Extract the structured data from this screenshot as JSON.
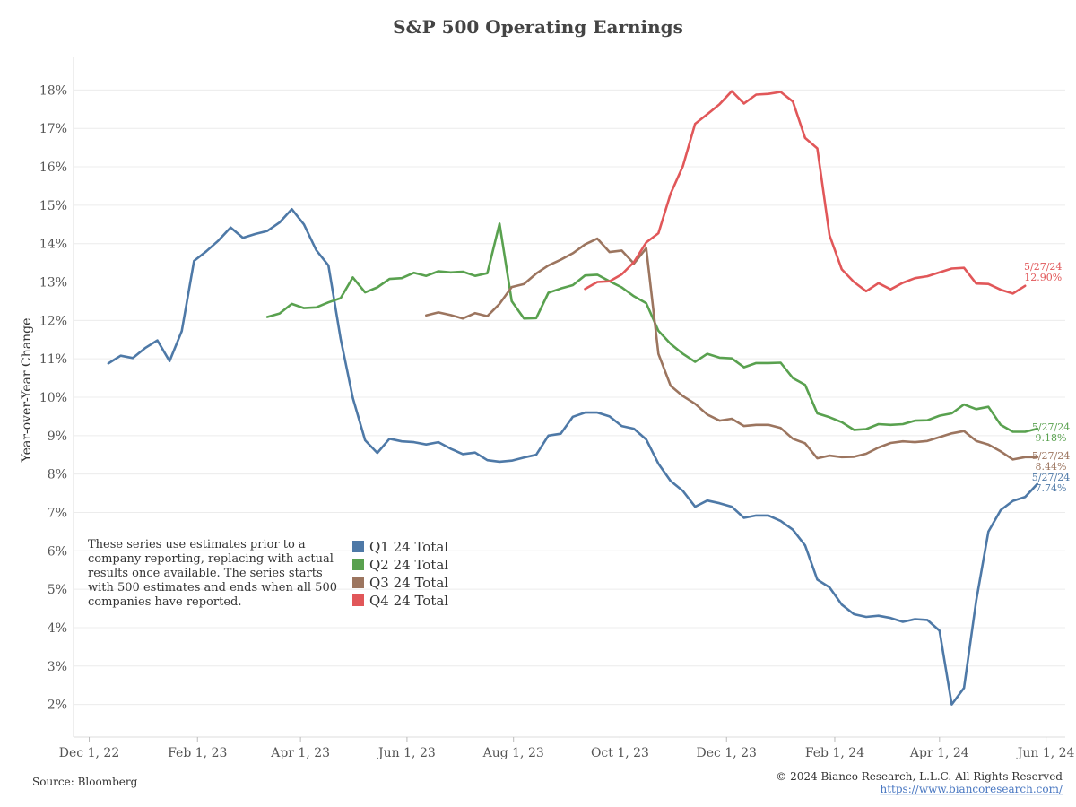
{
  "chart_data": {
    "type": "line",
    "title": "S&P 500 Operating Earnings",
    "ylabel": "Year-over-Year Change",
    "xlabel": "",
    "xlim": [
      "2022-11-22",
      "2024-06-12"
    ],
    "ylim": [
      1.15,
      18.85
    ],
    "y_ticks": [
      2,
      3,
      4,
      5,
      6,
      7,
      8,
      9,
      10,
      11,
      12,
      13,
      14,
      15,
      16,
      17,
      18
    ],
    "y_tick_suffix": "%",
    "x_ticks": [
      {
        "date": "2022-12-01",
        "label": "Dec 1, 22"
      },
      {
        "date": "2023-02-01",
        "label": "Feb 1, 23"
      },
      {
        "date": "2023-04-01",
        "label": "Apr 1, 23"
      },
      {
        "date": "2023-06-01",
        "label": "Jun 1, 23"
      },
      {
        "date": "2023-08-01",
        "label": "Aug 1, 23"
      },
      {
        "date": "2023-10-01",
        "label": "Oct 1, 23"
      },
      {
        "date": "2023-12-01",
        "label": "Dec 1, 23"
      },
      {
        "date": "2024-02-01",
        "label": "Feb 1, 24"
      },
      {
        "date": "2024-04-01",
        "label": "Apr 1, 24"
      },
      {
        "date": "2024-06-01",
        "label": "Jun 1, 24"
      }
    ],
    "grid": "horizontal",
    "legend_position": "lower-left",
    "series": [
      {
        "name": "Q1 24 Total",
        "color": "#4e79a7",
        "end_label": [
          "5/27/24",
          "7.74%"
        ],
        "points": [
          [
            "2022-12-12",
            10.88
          ],
          [
            "2022-12-19",
            11.08
          ],
          [
            "2022-12-26",
            11.02
          ],
          [
            "2023-01-02",
            11.28
          ],
          [
            "2023-01-09",
            11.48
          ],
          [
            "2023-01-16",
            10.94
          ],
          [
            "2023-01-23",
            11.72
          ],
          [
            "2023-01-30",
            13.55
          ],
          [
            "2023-02-06",
            13.8
          ],
          [
            "2023-02-13",
            14.08
          ],
          [
            "2023-02-20",
            14.42
          ],
          [
            "2023-02-27",
            14.15
          ],
          [
            "2023-03-06",
            14.25
          ],
          [
            "2023-03-13",
            14.33
          ],
          [
            "2023-03-20",
            14.55
          ],
          [
            "2023-03-27",
            14.9
          ],
          [
            "2023-04-03",
            14.5
          ],
          [
            "2023-04-10",
            13.83
          ],
          [
            "2023-04-17",
            13.43
          ],
          [
            "2023-04-24",
            11.52
          ],
          [
            "2023-05-01",
            9.98
          ],
          [
            "2023-05-08",
            8.88
          ],
          [
            "2023-05-15",
            8.55
          ],
          [
            "2023-05-22",
            8.92
          ],
          [
            "2023-05-29",
            8.85
          ],
          [
            "2023-06-05",
            8.83
          ],
          [
            "2023-06-12",
            8.77
          ],
          [
            "2023-06-19",
            8.83
          ],
          [
            "2023-06-26",
            8.66
          ],
          [
            "2023-07-03",
            8.52
          ],
          [
            "2023-07-10",
            8.56
          ],
          [
            "2023-07-17",
            8.36
          ],
          [
            "2023-07-24",
            8.32
          ],
          [
            "2023-07-31",
            8.35
          ],
          [
            "2023-08-07",
            8.43
          ],
          [
            "2023-08-14",
            8.5
          ],
          [
            "2023-08-21",
            9.0
          ],
          [
            "2023-08-28",
            9.05
          ],
          [
            "2023-09-04",
            9.49
          ],
          [
            "2023-09-11",
            9.6
          ],
          [
            "2023-09-18",
            9.6
          ],
          [
            "2023-09-25",
            9.5
          ],
          [
            "2023-10-02",
            9.25
          ],
          [
            "2023-10-09",
            9.18
          ],
          [
            "2023-10-16",
            8.9
          ],
          [
            "2023-10-23",
            8.27
          ],
          [
            "2023-10-30",
            7.82
          ],
          [
            "2023-11-06",
            7.56
          ],
          [
            "2023-11-13",
            7.15
          ],
          [
            "2023-11-20",
            7.31
          ],
          [
            "2023-11-27",
            7.24
          ],
          [
            "2023-12-04",
            7.15
          ],
          [
            "2023-12-11",
            6.86
          ],
          [
            "2023-12-18",
            6.92
          ],
          [
            "2023-12-25",
            6.92
          ],
          [
            "2024-01-01",
            6.78
          ],
          [
            "2024-01-08",
            6.55
          ],
          [
            "2024-01-15",
            6.14
          ],
          [
            "2024-01-22",
            5.25
          ],
          [
            "2024-01-29",
            5.05
          ],
          [
            "2024-02-05",
            4.6
          ],
          [
            "2024-02-12",
            4.35
          ],
          [
            "2024-02-19",
            4.28
          ],
          [
            "2024-02-26",
            4.31
          ],
          [
            "2024-03-04",
            4.25
          ],
          [
            "2024-03-11",
            4.15
          ],
          [
            "2024-03-18",
            4.22
          ],
          [
            "2024-03-25",
            4.2
          ],
          [
            "2024-04-01",
            3.92
          ],
          [
            "2024-04-08",
            2.0
          ],
          [
            "2024-04-15",
            2.43
          ],
          [
            "2024-04-22",
            4.7
          ],
          [
            "2024-04-29",
            6.5
          ],
          [
            "2024-05-06",
            7.06
          ],
          [
            "2024-05-13",
            7.3
          ],
          [
            "2024-05-20",
            7.4
          ],
          [
            "2024-05-27",
            7.74
          ]
        ]
      },
      {
        "name": "Q2 24 Total",
        "color": "#59a14f",
        "end_label": [
          "5/27/24",
          "9.18%"
        ],
        "points": [
          [
            "2023-03-13",
            12.09
          ],
          [
            "2023-03-20",
            12.18
          ],
          [
            "2023-03-27",
            12.43
          ],
          [
            "2023-04-03",
            12.32
          ],
          [
            "2023-04-10",
            12.34
          ],
          [
            "2023-04-17",
            12.47
          ],
          [
            "2023-04-24",
            12.58
          ],
          [
            "2023-05-01",
            13.12
          ],
          [
            "2023-05-08",
            12.73
          ],
          [
            "2023-05-15",
            12.86
          ],
          [
            "2023-05-22",
            13.08
          ],
          [
            "2023-05-29",
            13.1
          ],
          [
            "2023-06-05",
            13.24
          ],
          [
            "2023-06-12",
            13.16
          ],
          [
            "2023-06-19",
            13.28
          ],
          [
            "2023-06-26",
            13.25
          ],
          [
            "2023-07-03",
            13.27
          ],
          [
            "2023-07-10",
            13.16
          ],
          [
            "2023-07-17",
            13.23
          ],
          [
            "2023-07-24",
            14.52
          ],
          [
            "2023-07-31",
            12.5
          ],
          [
            "2023-08-07",
            12.05
          ],
          [
            "2023-08-14",
            12.06
          ],
          [
            "2023-08-21",
            12.72
          ],
          [
            "2023-08-28",
            12.83
          ],
          [
            "2023-09-04",
            12.92
          ],
          [
            "2023-09-11",
            13.17
          ],
          [
            "2023-09-18",
            13.19
          ],
          [
            "2023-09-25",
            13.02
          ],
          [
            "2023-10-02",
            12.86
          ],
          [
            "2023-10-09",
            12.63
          ],
          [
            "2023-10-16",
            12.45
          ],
          [
            "2023-10-23",
            11.73
          ],
          [
            "2023-10-30",
            11.39
          ],
          [
            "2023-11-06",
            11.13
          ],
          [
            "2023-11-13",
            10.92
          ],
          [
            "2023-11-20",
            11.13
          ],
          [
            "2023-11-27",
            11.03
          ],
          [
            "2023-12-04",
            11.01
          ],
          [
            "2023-12-11",
            10.78
          ],
          [
            "2023-12-18",
            10.89
          ],
          [
            "2023-12-25",
            10.89
          ],
          [
            "2024-01-01",
            10.9
          ],
          [
            "2024-01-08",
            10.5
          ],
          [
            "2024-01-15",
            10.32
          ],
          [
            "2024-01-22",
            9.58
          ],
          [
            "2024-01-29",
            9.48
          ],
          [
            "2024-02-05",
            9.35
          ],
          [
            "2024-02-12",
            9.15
          ],
          [
            "2024-02-19",
            9.17
          ],
          [
            "2024-02-26",
            9.3
          ],
          [
            "2024-03-04",
            9.28
          ],
          [
            "2024-03-11",
            9.3
          ],
          [
            "2024-03-18",
            9.39
          ],
          [
            "2024-03-25",
            9.4
          ],
          [
            "2024-04-01",
            9.52
          ],
          [
            "2024-04-08",
            9.58
          ],
          [
            "2024-04-15",
            9.81
          ],
          [
            "2024-04-22",
            9.69
          ],
          [
            "2024-04-29",
            9.75
          ],
          [
            "2024-05-06",
            9.28
          ],
          [
            "2024-05-13",
            9.1
          ],
          [
            "2024-05-20",
            9.1
          ],
          [
            "2024-05-27",
            9.18
          ]
        ]
      },
      {
        "name": "Q3 24 Total",
        "color": "#9c755f",
        "end_label": [
          "5/27/24",
          "8.44%"
        ],
        "points": [
          [
            "2023-06-12",
            12.13
          ],
          [
            "2023-06-19",
            12.21
          ],
          [
            "2023-06-26",
            12.14
          ],
          [
            "2023-07-03",
            12.05
          ],
          [
            "2023-07-10",
            12.19
          ],
          [
            "2023-07-17",
            12.11
          ],
          [
            "2023-07-24",
            12.43
          ],
          [
            "2023-07-31",
            12.87
          ],
          [
            "2023-08-07",
            12.95
          ],
          [
            "2023-08-14",
            13.22
          ],
          [
            "2023-08-21",
            13.43
          ],
          [
            "2023-08-28",
            13.58
          ],
          [
            "2023-09-04",
            13.75
          ],
          [
            "2023-09-11",
            13.98
          ],
          [
            "2023-09-18",
            14.13
          ],
          [
            "2023-09-25",
            13.78
          ],
          [
            "2023-10-02",
            13.82
          ],
          [
            "2023-10-09",
            13.48
          ],
          [
            "2023-10-16",
            13.88
          ],
          [
            "2023-10-23",
            11.13
          ],
          [
            "2023-10-30",
            10.3
          ],
          [
            "2023-11-06",
            10.03
          ],
          [
            "2023-11-13",
            9.83
          ],
          [
            "2023-11-20",
            9.55
          ],
          [
            "2023-11-27",
            9.39
          ],
          [
            "2023-12-04",
            9.44
          ],
          [
            "2023-12-11",
            9.25
          ],
          [
            "2023-12-18",
            9.28
          ],
          [
            "2023-12-25",
            9.28
          ],
          [
            "2024-01-01",
            9.2
          ],
          [
            "2024-01-08",
            8.92
          ],
          [
            "2024-01-15",
            8.8
          ],
          [
            "2024-01-22",
            8.41
          ],
          [
            "2024-01-29",
            8.48
          ],
          [
            "2024-02-05",
            8.44
          ],
          [
            "2024-02-12",
            8.45
          ],
          [
            "2024-02-19",
            8.53
          ],
          [
            "2024-02-26",
            8.69
          ],
          [
            "2024-03-04",
            8.81
          ],
          [
            "2024-03-11",
            8.85
          ],
          [
            "2024-03-18",
            8.83
          ],
          [
            "2024-03-25",
            8.86
          ],
          [
            "2024-04-01",
            8.96
          ],
          [
            "2024-04-08",
            9.06
          ],
          [
            "2024-04-15",
            9.12
          ],
          [
            "2024-04-22",
            8.86
          ],
          [
            "2024-04-29",
            8.77
          ],
          [
            "2024-05-06",
            8.59
          ],
          [
            "2024-05-13",
            8.38
          ],
          [
            "2024-05-20",
            8.44
          ],
          [
            "2024-05-27",
            8.44
          ]
        ]
      },
      {
        "name": "Q4 24 Total",
        "color": "#e15759",
        "end_label": [
          "5/27/24",
          "12.90%"
        ],
        "points": [
          [
            "2023-09-11",
            12.82
          ],
          [
            "2023-09-18",
            13.0
          ],
          [
            "2023-09-25",
            13.02
          ],
          [
            "2023-10-02",
            13.2
          ],
          [
            "2023-10-09",
            13.52
          ],
          [
            "2023-10-16",
            14.03
          ],
          [
            "2023-10-23",
            14.27
          ],
          [
            "2023-10-30",
            15.3
          ],
          [
            "2023-11-06",
            16.02
          ],
          [
            "2023-11-13",
            17.12
          ],
          [
            "2023-11-20",
            17.37
          ],
          [
            "2023-11-27",
            17.63
          ],
          [
            "2023-12-04",
            17.97
          ],
          [
            "2023-12-11",
            17.65
          ],
          [
            "2023-12-18",
            17.88
          ],
          [
            "2023-12-25",
            17.9
          ],
          [
            "2024-01-01",
            17.95
          ],
          [
            "2024-01-08",
            17.7
          ],
          [
            "2024-01-15",
            16.75
          ],
          [
            "2024-01-22",
            16.48
          ],
          [
            "2024-01-29",
            14.22
          ],
          [
            "2024-02-05",
            13.33
          ],
          [
            "2024-02-12",
            13.0
          ],
          [
            "2024-02-19",
            12.76
          ],
          [
            "2024-02-26",
            12.97
          ],
          [
            "2024-03-04",
            12.81
          ],
          [
            "2024-03-11",
            12.98
          ],
          [
            "2024-03-18",
            13.1
          ],
          [
            "2024-03-25",
            13.15
          ],
          [
            "2024-04-01",
            13.25
          ],
          [
            "2024-04-08",
            13.35
          ],
          [
            "2024-04-15",
            13.37
          ],
          [
            "2024-04-22",
            12.96
          ],
          [
            "2024-04-29",
            12.95
          ],
          [
            "2024-05-06",
            12.8
          ],
          [
            "2024-05-13",
            12.7
          ],
          [
            "2024-05-20",
            12.9
          ]
        ]
      }
    ]
  },
  "note": [
    "These series use estimates prior to a",
    "company reporting, replacing with actual",
    "results once available. The series starts",
    "with 500 estimates and ends when all 500",
    "companies have reported."
  ],
  "footer": {
    "source": "Source: Bloomberg",
    "copyright": "© 2024 Bianco Research, L.L.C. All Rights Reserved",
    "url": "https://www.biancoresearch.com/"
  }
}
